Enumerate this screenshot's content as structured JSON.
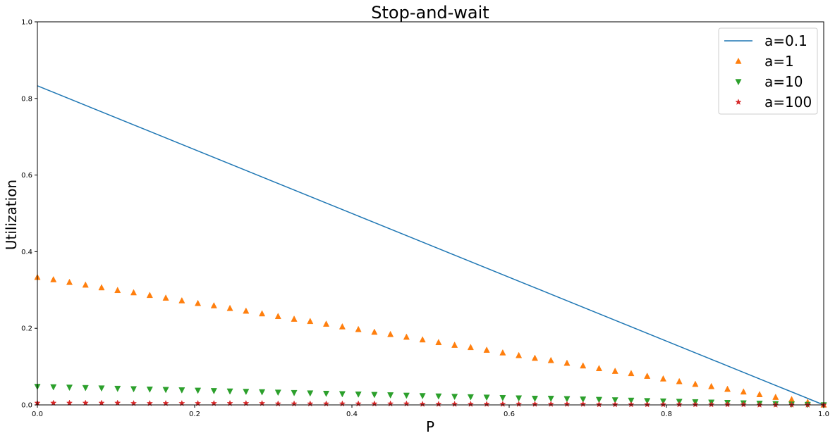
{
  "chart_data": {
    "type": "line",
    "title": "Stop-and-wait",
    "xlabel": "P",
    "ylabel": "Utilization",
    "xlim": [
      0,
      1
    ],
    "ylim": [
      0,
      1
    ],
    "xticks": [
      "0.0",
      "0.2",
      "0.4",
      "0.6",
      "0.8",
      "1.0"
    ],
    "yticks": [
      "0.0",
      "0.2",
      "0.4",
      "0.6",
      "0.8",
      "1.0"
    ],
    "grid": false,
    "legend_position": "top-right",
    "x": [
      0.0,
      0.0204,
      0.0408,
      0.0612,
      0.0816,
      0.102,
      0.1224,
      0.1429,
      0.1633,
      0.1837,
      0.2041,
      0.2245,
      0.2449,
      0.2653,
      0.2857,
      0.3061,
      0.3265,
      0.3469,
      0.3673,
      0.3878,
      0.4082,
      0.4286,
      0.449,
      0.4694,
      0.4898,
      0.5102,
      0.5306,
      0.551,
      0.5714,
      0.5918,
      0.6122,
      0.6327,
      0.6531,
      0.6735,
      0.6939,
      0.7143,
      0.7347,
      0.7551,
      0.7755,
      0.7959,
      0.8163,
      0.8367,
      0.8571,
      0.8776,
      0.898,
      0.9184,
      0.9388,
      0.9592,
      0.9796,
      1.0
    ],
    "series": [
      {
        "name": "a=0.1",
        "style": "line",
        "marker": "none",
        "color": "#1f77b4",
        "values": [
          0.833,
          0.816,
          0.799,
          0.782,
          0.765,
          0.748,
          0.731,
          0.714,
          0.697,
          0.68,
          0.663,
          0.646,
          0.629,
          0.612,
          0.595,
          0.578,
          0.561,
          0.544,
          0.527,
          0.51,
          0.493,
          0.476,
          0.459,
          0.442,
          0.425,
          0.408,
          0.391,
          0.374,
          0.357,
          0.34,
          0.323,
          0.306,
          0.289,
          0.272,
          0.255,
          0.238,
          0.221,
          0.204,
          0.187,
          0.17,
          0.153,
          0.136,
          0.119,
          0.102,
          0.085,
          0.068,
          0.051,
          0.034,
          0.017,
          0.0
        ]
      },
      {
        "name": "a=1",
        "style": "markers",
        "marker": "triangle-up",
        "color": "#ff7f0e",
        "values": [
          0.333,
          0.327,
          0.32,
          0.313,
          0.306,
          0.299,
          0.293,
          0.286,
          0.279,
          0.272,
          0.265,
          0.259,
          0.252,
          0.245,
          0.238,
          0.231,
          0.224,
          0.218,
          0.211,
          0.204,
          0.197,
          0.19,
          0.184,
          0.177,
          0.17,
          0.163,
          0.156,
          0.15,
          0.143,
          0.136,
          0.129,
          0.122,
          0.116,
          0.109,
          0.102,
          0.095,
          0.088,
          0.082,
          0.075,
          0.068,
          0.061,
          0.054,
          0.048,
          0.041,
          0.034,
          0.027,
          0.02,
          0.014,
          0.007,
          0.0
        ]
      },
      {
        "name": "a=10",
        "style": "markers",
        "marker": "triangle-down",
        "color": "#2ca02c",
        "values": [
          0.048,
          0.047,
          0.046,
          0.045,
          0.044,
          0.043,
          0.042,
          0.041,
          0.04,
          0.039,
          0.038,
          0.037,
          0.036,
          0.035,
          0.034,
          0.033,
          0.032,
          0.031,
          0.03,
          0.029,
          0.028,
          0.027,
          0.026,
          0.025,
          0.024,
          0.023,
          0.022,
          0.021,
          0.02,
          0.019,
          0.018,
          0.017,
          0.017,
          0.016,
          0.015,
          0.014,
          0.013,
          0.012,
          0.011,
          0.01,
          0.009,
          0.008,
          0.007,
          0.006,
          0.005,
          0.004,
          0.003,
          0.002,
          0.001,
          0.0
        ]
      },
      {
        "name": "a=100",
        "style": "markers",
        "marker": "star",
        "color": "#d62728",
        "values": [
          0.005,
          0.005,
          0.005,
          0.005,
          0.005,
          0.005,
          0.004,
          0.004,
          0.004,
          0.004,
          0.004,
          0.004,
          0.004,
          0.004,
          0.004,
          0.003,
          0.003,
          0.003,
          0.003,
          0.003,
          0.003,
          0.003,
          0.003,
          0.003,
          0.002,
          0.002,
          0.002,
          0.002,
          0.002,
          0.002,
          0.002,
          0.002,
          0.002,
          0.002,
          0.002,
          0.001,
          0.001,
          0.001,
          0.001,
          0.001,
          0.001,
          0.001,
          0.001,
          0.001,
          0.001,
          0.0,
          0.0,
          0.0,
          0.0,
          0.0
        ]
      }
    ]
  }
}
